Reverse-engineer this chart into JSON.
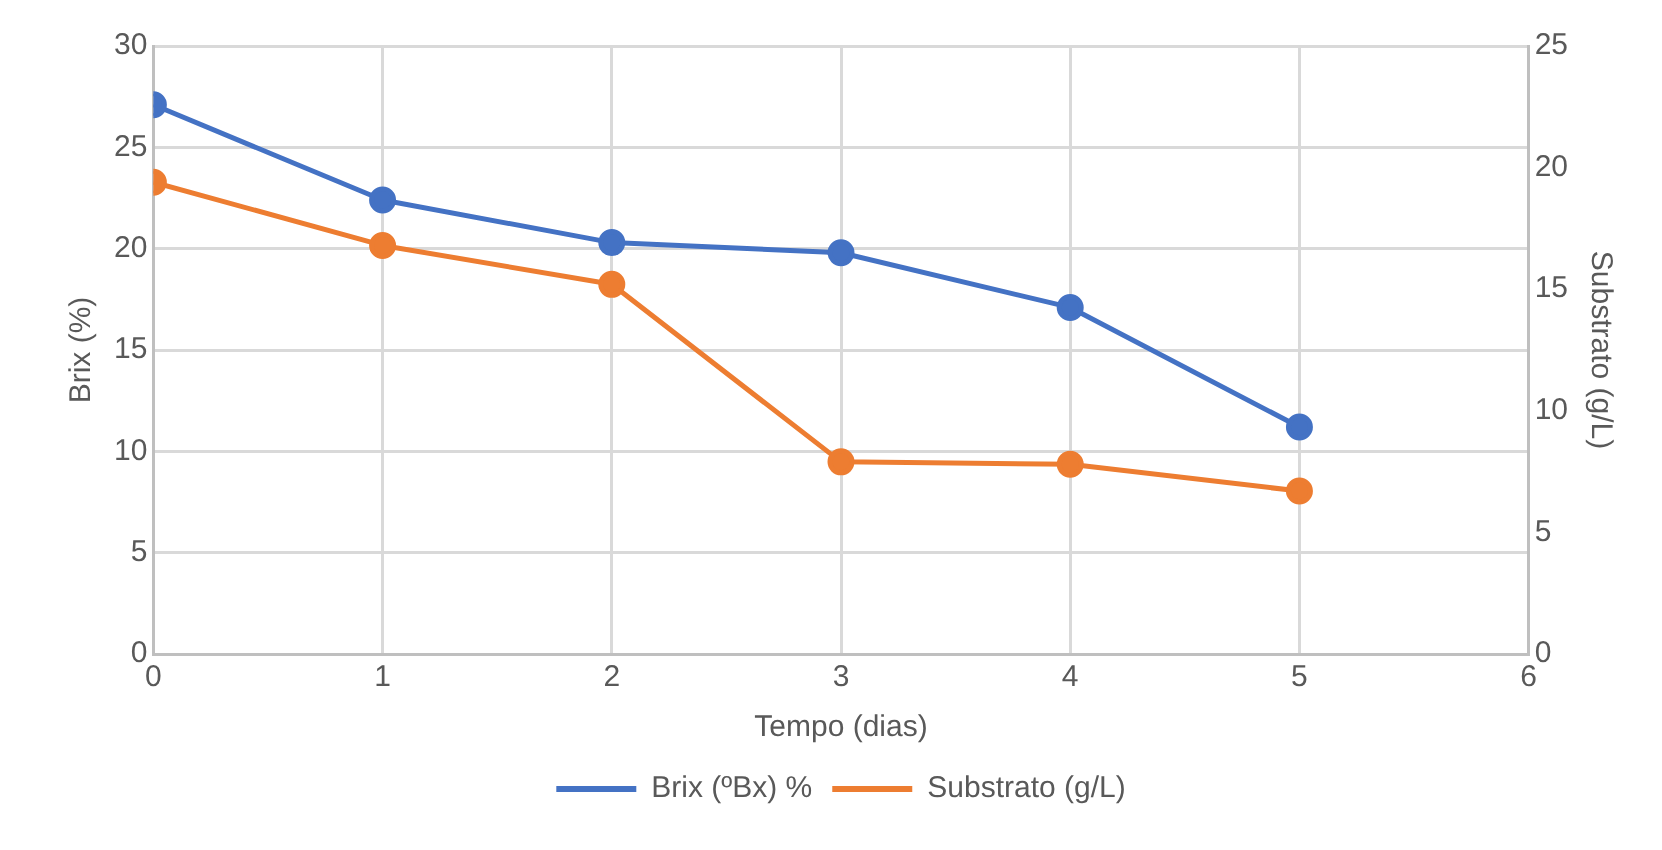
{
  "chart_data": {
    "type": "line",
    "x": [
      0,
      1,
      2,
      3,
      4,
      5
    ],
    "xlabel": "Tempo (dias)",
    "ylabel": "Brix (%)",
    "y2label": "Substrato (g/L)",
    "xlim": [
      0,
      6
    ],
    "xticks": [
      0,
      1,
      2,
      3,
      4,
      5,
      6
    ],
    "ylim": [
      0,
      30
    ],
    "yticks": [
      0,
      5,
      10,
      15,
      20,
      25,
      30
    ],
    "y2lim": [
      0,
      25
    ],
    "y2ticks": [
      0,
      5,
      10,
      15,
      20,
      25
    ],
    "grid": true,
    "legend": "bottom",
    "marker": "circle",
    "line_style": "solid",
    "series": [
      {
        "name": "Brix (ºBx) %",
        "color": "#4472c4",
        "values": [
          27.1,
          22.4,
          20.3,
          19.8,
          17.1,
          11.2
        ]
      },
      {
        "name": "Substrato (g/L)",
        "color": "#ed7d31",
        "axis": "y2",
        "values": [
          19.4,
          16.8,
          15.2,
          7.9,
          7.8,
          6.7
        ]
      }
    ]
  }
}
